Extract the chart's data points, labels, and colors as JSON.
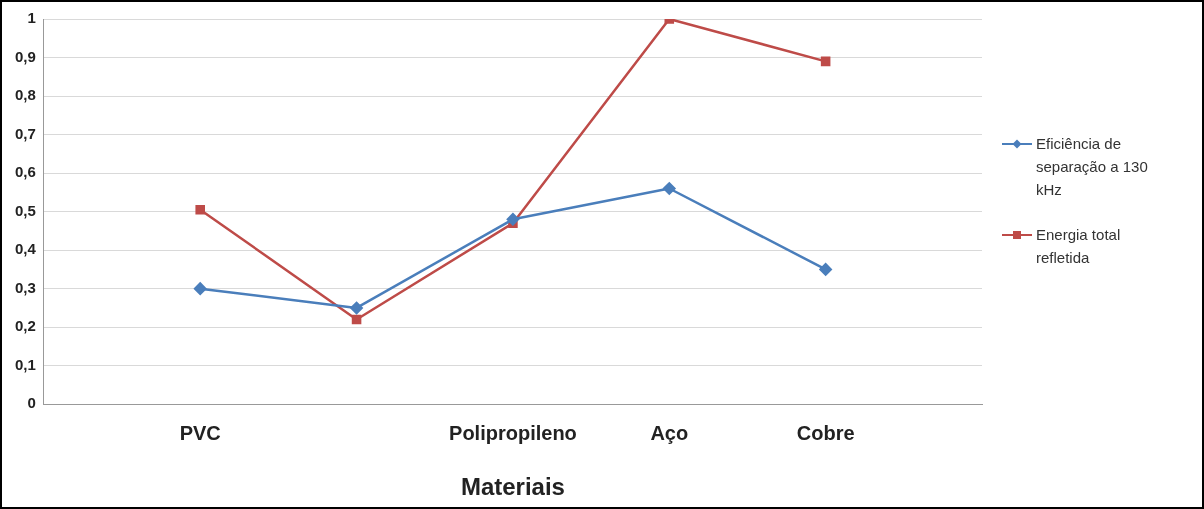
{
  "chart_data": {
    "type": "line",
    "xlabel": "Materiais",
    "categories": [
      "PVC",
      null,
      "Polipropileno",
      "Aço",
      "Cobre"
    ],
    "series": [
      {
        "name": "Eficiência de separação a 130 kHz",
        "color": "#4a7ebb",
        "marker": "diamond",
        "values": [
          0.3,
          0.25,
          0.48,
          0.56,
          0.35
        ]
      },
      {
        "name": "Energia total refletida",
        "color": "#be4b48",
        "marker": "square",
        "values": [
          0.505,
          0.22,
          0.47,
          1.0,
          0.89
        ]
      }
    ],
    "ylim": [
      0,
      1
    ],
    "yticks": [
      0,
      {
        "value": 0.1,
        "label": "0,1"
      },
      {
        "value": 0.2,
        "label": "0,2"
      },
      {
        "value": 0.3,
        "label": "0,3"
      },
      {
        "value": 0.4,
        "label": "0,4"
      },
      {
        "value": 0.5,
        "label": "0,5"
      },
      {
        "value": 0.6,
        "label": "0,6"
      },
      {
        "value": 0.7,
        "label": "0,7"
      },
      {
        "value": 0.8,
        "label": "0,8"
      },
      {
        "value": 0.9,
        "label": "0,9"
      },
      1
    ],
    "grid": "y",
    "legend": "right"
  }
}
